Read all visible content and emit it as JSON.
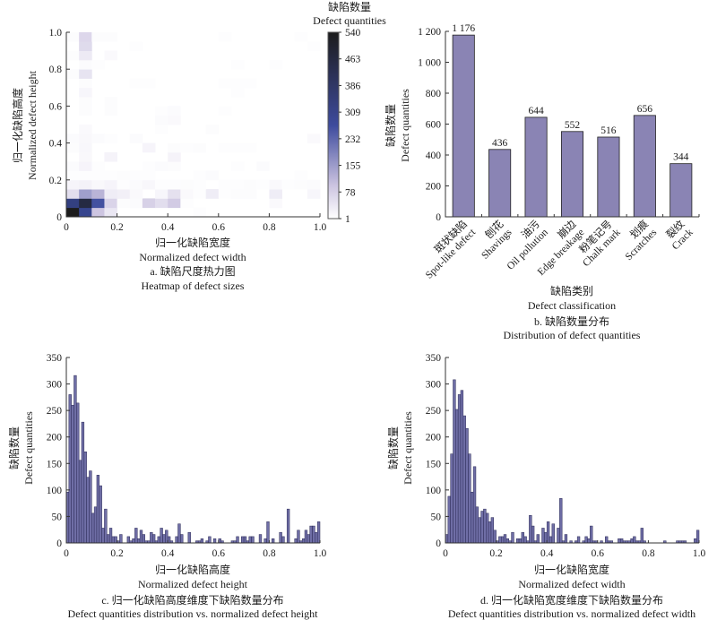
{
  "chart_data": [
    {
      "id": "a",
      "type": "heatmap",
      "caption_cn": "a. 缺陷尺度热力图",
      "caption_en": "Heatmap of defect sizes",
      "xlabel_cn": "归一化缺陷宽度",
      "xlabel_en": "Normalized defect width",
      "ylabel_cn": "归一化缺陷高度",
      "ylabel_en": "Normalized defect height",
      "xlim": [
        0,
        1.0
      ],
      "ylim": [
        0,
        1.0
      ],
      "xticks": [
        "0",
        "0.2",
        "0.4",
        "0.6",
        "0.8",
        "1.0"
      ],
      "yticks": [
        "0",
        "0.2",
        "0.4",
        "0.6",
        "0.8",
        "1.0"
      ],
      "colorbar": {
        "title_cn": "缺陷数量",
        "title_en": "Defect quantities",
        "ticks": [
          "1",
          "78",
          "155",
          "232",
          "309",
          "386",
          "463",
          "540"
        ],
        "range": [
          1,
          540
        ],
        "colors": [
          "#ffffff",
          "#cbc3e0",
          "#3a4a9c",
          "#1c1c1c"
        ]
      },
      "bins": 20,
      "grid_rows_bottom_to_top": [
        [
          540,
          300,
          95,
          40,
          3,
          3,
          2,
          2,
          2,
          2,
          4,
          3,
          2,
          2,
          3,
          2,
          2,
          3,
          2,
          2
        ],
        [
          330,
          460,
          260,
          70,
          6,
          8,
          75,
          55,
          85,
          4,
          2,
          2,
          2,
          2,
          2,
          2,
          10,
          2,
          2,
          2
        ],
        [
          55,
          150,
          120,
          30,
          25,
          10,
          3,
          15,
          50,
          10,
          4,
          30,
          4,
          6,
          6,
          3,
          30,
          3,
          3,
          15
        ],
        [
          18,
          22,
          12,
          18,
          4,
          8,
          14,
          4,
          5,
          6,
          4,
          2,
          4,
          4,
          6,
          4,
          10,
          4,
          6,
          8
        ],
        [
          4,
          4,
          4,
          4,
          6,
          4,
          4,
          3,
          3,
          3,
          4,
          8,
          3,
          3,
          3,
          3,
          3,
          3,
          4,
          3
        ],
        [
          8,
          18,
          4,
          3,
          3,
          3,
          4,
          8,
          6,
          3,
          3,
          3,
          3,
          4,
          3,
          8,
          3,
          3,
          3,
          3
        ],
        [
          3,
          12,
          3,
          20,
          3,
          3,
          3,
          3,
          20,
          3,
          3,
          3,
          3,
          3,
          3,
          3,
          3,
          3,
          3,
          3
        ],
        [
          6,
          14,
          3,
          3,
          3,
          3,
          18,
          3,
          6,
          4,
          6,
          3,
          4,
          4,
          4,
          3,
          3,
          3,
          3,
          3
        ],
        [
          8,
          12,
          8,
          4,
          3,
          8,
          3,
          3,
          3,
          3,
          3,
          3,
          3,
          3,
          3,
          3,
          3,
          3,
          3,
          10
        ],
        [
          3,
          10,
          3,
          3,
          3,
          3,
          3,
          4,
          3,
          3,
          3,
          6,
          3,
          3,
          3,
          3,
          3,
          3,
          3,
          3
        ],
        [
          3,
          3,
          3,
          3,
          3,
          3,
          3,
          8,
          10,
          3,
          3,
          3,
          3,
          3,
          3,
          3,
          3,
          3,
          3,
          3
        ],
        [
          3,
          6,
          3,
          6,
          3,
          3,
          3,
          4,
          8,
          3,
          3,
          3,
          4,
          3,
          3,
          3,
          3,
          3,
          3,
          3
        ],
        [
          3,
          6,
          3,
          6,
          3,
          3,
          3,
          3,
          3,
          3,
          3,
          3,
          3,
          3,
          3,
          3,
          3,
          3,
          3,
          3
        ],
        [
          3,
          15,
          3,
          3,
          3,
          3,
          3,
          3,
          3,
          3,
          3,
          3,
          3,
          4,
          3,
          3,
          3,
          3,
          3,
          3
        ],
        [
          3,
          6,
          3,
          3,
          3,
          4,
          4,
          3,
          3,
          3,
          3,
          3,
          4,
          4,
          4,
          3,
          3,
          3,
          3,
          3
        ],
        [
          6,
          45,
          3,
          3,
          3,
          3,
          3,
          3,
          3,
          3,
          3,
          3,
          3,
          3,
          3,
          3,
          3,
          3,
          3,
          3
        ],
        [
          3,
          8,
          5,
          3,
          3,
          3,
          3,
          3,
          3,
          3,
          3,
          3,
          3,
          4,
          3,
          3,
          4,
          3,
          3,
          3
        ],
        [
          6,
          35,
          3,
          10,
          3,
          3,
          3,
          3,
          3,
          3,
          3,
          3,
          3,
          3,
          3,
          3,
          3,
          3,
          3,
          3
        ],
        [
          3,
          60,
          3,
          3,
          3,
          4,
          3,
          3,
          3,
          3,
          3,
          3,
          3,
          3,
          3,
          3,
          3,
          3,
          3,
          4
        ],
        [
          6,
          65,
          6,
          6,
          3,
          3,
          3,
          3,
          3,
          3,
          3,
          3,
          4,
          3,
          3,
          3,
          3,
          3,
          4,
          3
        ]
      ]
    },
    {
      "id": "b",
      "type": "bar",
      "caption_cn": "b. 缺陷数量分布",
      "caption_en": "Distribution of defect quantities",
      "xlabel_cn": "缺陷类别",
      "xlabel_en": "Defect classification",
      "ylabel_cn": "缺陷数量",
      "ylabel_en": "Defect quantities",
      "ylim": [
        0,
        1200
      ],
      "yticks": [
        "0",
        "200",
        "400",
        "600",
        "800",
        "1 000",
        "1 200"
      ],
      "categories_cn": [
        "斑状缺陷",
        "刨花",
        "油污",
        "崩边",
        "粉笔记号",
        "划痕",
        "裂纹"
      ],
      "categories_en": [
        "Spot-like defect",
        "Shavings",
        "Oil pollution",
        "Edge breakage",
        "Chalk mark",
        "Scratches",
        "Crack"
      ],
      "values": [
        1176,
        436,
        644,
        552,
        516,
        656,
        344
      ],
      "value_labels": [
        "1 176",
        "436",
        "644",
        "552",
        "516",
        "656",
        "344"
      ],
      "bar_color": "#8a84b4"
    },
    {
      "id": "c",
      "type": "bar",
      "subtype": "histogram",
      "caption_cn": "c. 归一化缺陷高度维度下缺陷数量分布",
      "caption_en": "Defect quantities distribution vs. normalized defect height",
      "xlabel_cn": "归一化缺陷高度",
      "xlabel_en": "Normalized defect height",
      "ylabel_cn": "缺陷数量",
      "ylabel_en": "Defect quantities",
      "xlim": [
        0,
        1.0
      ],
      "ylim": [
        0,
        350
      ],
      "xticks": [
        "0",
        "0.2",
        "0.4",
        "0.6",
        "0.8",
        "1.0"
      ],
      "yticks": [
        "0",
        "50",
        "100",
        "150",
        "200",
        "250",
        "300",
        "350"
      ],
      "bin_width": 0.01,
      "values": [
        96,
        280,
        260,
        316,
        264,
        156,
        228,
        172,
        124,
        136,
        56,
        68,
        128,
        108,
        28,
        64,
        16,
        28,
        12,
        12,
        4,
        16,
        0,
        0,
        12,
        4,
        8,
        28,
        8,
        24,
        16,
        4,
        4,
        20,
        16,
        4,
        12,
        28,
        16,
        24,
        12,
        4,
        0,
        12,
        36,
        16,
        0,
        0,
        20,
        0,
        0,
        4,
        4,
        8,
        0,
        4,
        12,
        0,
        8,
        0,
        8,
        4,
        0,
        0,
        0,
        4,
        4,
        12,
        0,
        12,
        12,
        4,
        12,
        12,
        0,
        0,
        16,
        0,
        8,
        40,
        0,
        8,
        0,
        0,
        20,
        12,
        0,
        64,
        0,
        0,
        8,
        24,
        4,
        8,
        24,
        16,
        32,
        32,
        20,
        40
      ],
      "bar_color": "#6f6ea6"
    },
    {
      "id": "d",
      "type": "bar",
      "subtype": "histogram",
      "caption_cn": "d. 归一化缺陷宽度维度下缺陷数量分布",
      "caption_en": "Defect quantities distribution vs. normalized defect width",
      "xlabel_cn": "归一化缺陷宽度",
      "xlabel_en": "Normalized defect width",
      "ylabel_cn": "缺陷数量",
      "ylabel_en": "Defect quantities",
      "xlim": [
        0,
        1.0
      ],
      "ylim": [
        0,
        350
      ],
      "xticks": [
        "0",
        "0.2",
        "0.4",
        "0.6",
        "0.8",
        "1.0"
      ],
      "yticks": [
        "0",
        "50",
        "100",
        "150",
        "200",
        "250",
        "300",
        "350"
      ],
      "bin_width": 0.01,
      "values": [
        16,
        88,
        168,
        308,
        252,
        280,
        288,
        240,
        216,
        168,
        96,
        144,
        68,
        48,
        60,
        64,
        56,
        40,
        48,
        24,
        4,
        12,
        12,
        16,
        8,
        4,
        20,
        0,
        8,
        8,
        20,
        12,
        4,
        52,
        32,
        4,
        16,
        0,
        28,
        20,
        40,
        12,
        36,
        0,
        28,
        84,
        4,
        16,
        0,
        4,
        0,
        4,
        12,
        0,
        4,
        12,
        8,
        32,
        4,
        4,
        0,
        4,
        0,
        12,
        4,
        4,
        0,
        0,
        8,
        8,
        4,
        4,
        4,
        8,
        12,
        4,
        4,
        28,
        4,
        0,
        0,
        0,
        0,
        0,
        0,
        0,
        4,
        0,
        0,
        0,
        0,
        4,
        4,
        4,
        4,
        0,
        0,
        0,
        8,
        24
      ],
      "bar_color": "#6f6ea6"
    }
  ]
}
